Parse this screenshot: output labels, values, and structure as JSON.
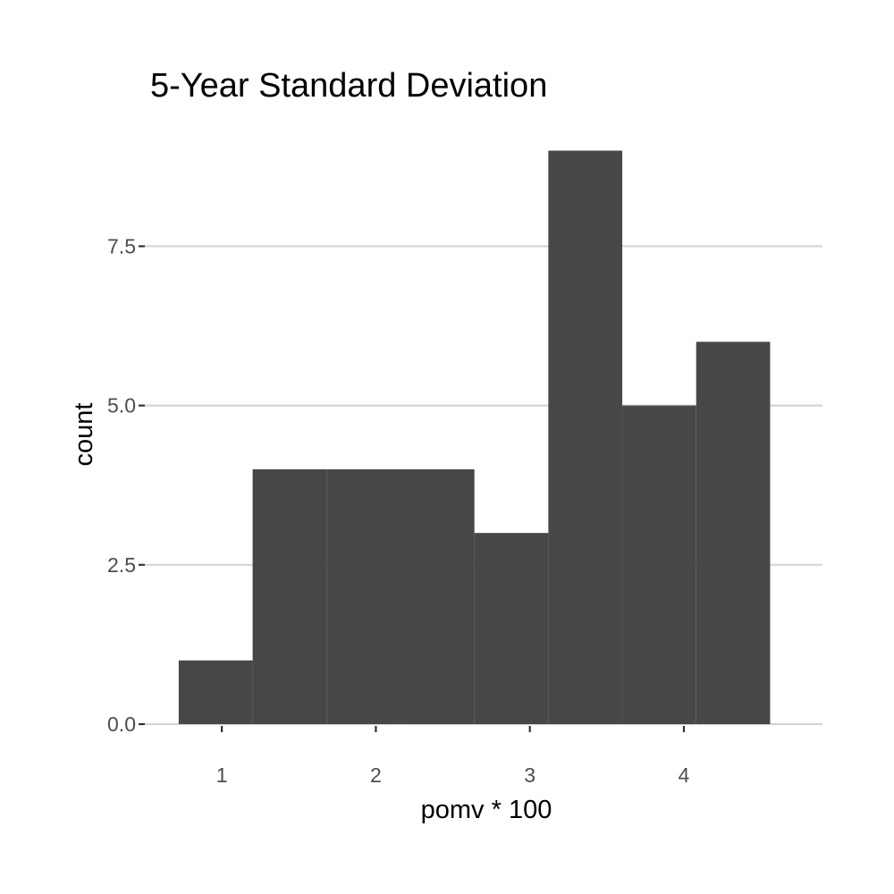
{
  "chart_data": {
    "type": "bar",
    "subtype": "histogram",
    "title": "5-Year Standard Deviation",
    "xlabel": "pomv * 100",
    "ylabel": "count",
    "xlim": [
      0.5,
      4.9
    ],
    "ylim": [
      0,
      9.4
    ],
    "x_ticks": [
      1,
      2,
      3,
      4
    ],
    "x_tick_labels": [
      "1",
      "2",
      "3",
      "4"
    ],
    "y_ticks": [
      0,
      2.5,
      5,
      7.5
    ],
    "y_tick_labels": [
      "0.0",
      "2.5",
      "5.0",
      "7.5"
    ],
    "bins": [
      {
        "x0": 0.72,
        "x1": 1.2,
        "count": 1
      },
      {
        "x0": 1.2,
        "x1": 1.68,
        "count": 4
      },
      {
        "x0": 1.68,
        "x1": 2.16,
        "count": 4
      },
      {
        "x0": 2.16,
        "x1": 2.64,
        "count": 4
      },
      {
        "x0": 2.64,
        "x1": 3.12,
        "count": 3
      },
      {
        "x0": 3.12,
        "x1": 3.6,
        "count": 9
      },
      {
        "x0": 3.6,
        "x1": 4.08,
        "count": 5
      },
      {
        "x0": 4.08,
        "x1": 4.56,
        "count": 6
      }
    ],
    "bar_color": "#474747",
    "grid": "horizontal-major",
    "legend": "none"
  }
}
